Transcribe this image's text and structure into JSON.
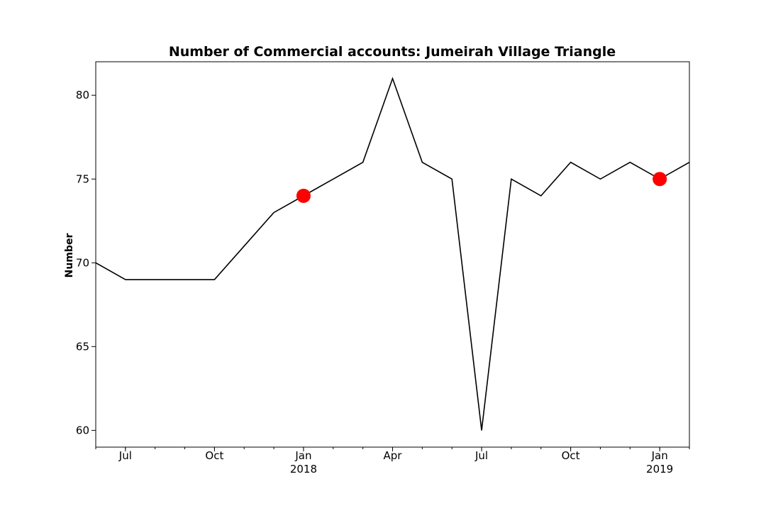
{
  "chart_data": {
    "type": "line",
    "title": "Number of Commercial accounts: Jumeirah Village Triangle",
    "xlabel": "",
    "ylabel": "Number",
    "x_range": [
      "2017-06",
      "2019-02"
    ],
    "ylim": [
      59,
      82
    ],
    "grid": false,
    "series": [
      {
        "color": "#000000",
        "x": [
          "2017-06",
          "2017-07",
          "2017-08",
          "2017-09",
          "2017-10",
          "2017-11",
          "2017-12",
          "2018-01",
          "2018-02",
          "2018-03",
          "2018-04",
          "2018-05",
          "2018-06",
          "2018-07",
          "2018-08",
          "2018-09",
          "2018-10",
          "2018-11",
          "2018-12",
          "2019-01",
          "2019-02"
        ],
        "values": [
          70,
          69,
          69,
          69,
          69,
          71,
          73,
          74,
          75,
          76,
          81,
          76,
          75,
          60,
          75,
          74,
          76,
          75,
          76,
          75,
          76
        ]
      }
    ],
    "highlights": {
      "color": "#ff0000",
      "points": [
        {
          "x": "2018-01",
          "y": 74
        },
        {
          "x": "2019-01",
          "y": 75
        }
      ]
    },
    "yticks": [
      60,
      65,
      70,
      75,
      80
    ],
    "xticks": [
      {
        "x": "2017-07",
        "label": "Jul",
        "sublabel": ""
      },
      {
        "x": "2017-10",
        "label": "Oct",
        "sublabel": ""
      },
      {
        "x": "2018-01",
        "label": "Jan",
        "sublabel": "2018"
      },
      {
        "x": "2018-04",
        "label": "Apr",
        "sublabel": ""
      },
      {
        "x": "2018-07",
        "label": "Jul",
        "sublabel": ""
      },
      {
        "x": "2018-10",
        "label": "Oct",
        "sublabel": ""
      },
      {
        "x": "2019-01",
        "label": "Jan",
        "sublabel": "2019"
      }
    ]
  }
}
